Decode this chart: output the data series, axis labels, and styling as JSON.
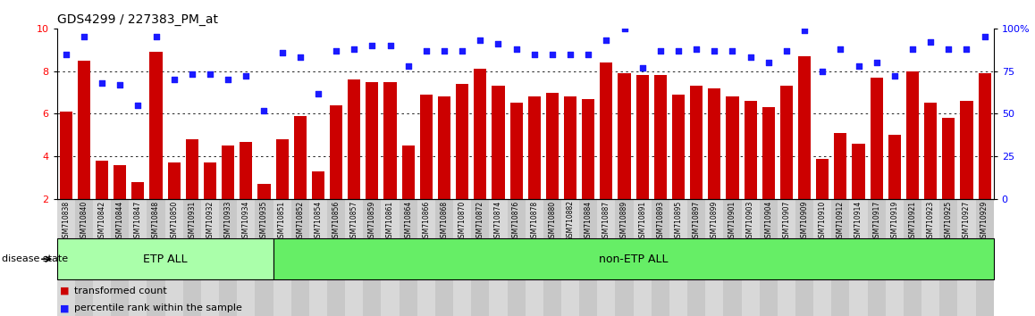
{
  "title": "GDS4299 / 227383_PM_at",
  "samples": [
    "GSM710838",
    "GSM710840",
    "GSM710842",
    "GSM710844",
    "GSM710847",
    "GSM710848",
    "GSM710850",
    "GSM710931",
    "GSM710932",
    "GSM710933",
    "GSM710934",
    "GSM710935",
    "GSM710851",
    "GSM710852",
    "GSM710854",
    "GSM710856",
    "GSM710857",
    "GSM710859",
    "GSM710861",
    "GSM710864",
    "GSM710866",
    "GSM710868",
    "GSM710870",
    "GSM710872",
    "GSM710874",
    "GSM710876",
    "GSM710878",
    "GSM710880",
    "GSM710882",
    "GSM710884",
    "GSM710887",
    "GSM710889",
    "GSM710891",
    "GSM710893",
    "GSM710895",
    "GSM710897",
    "GSM710899",
    "GSM710901",
    "GSM710903",
    "GSM710904",
    "GSM710907",
    "GSM710909",
    "GSM710910",
    "GSM710912",
    "GSM710914",
    "GSM710917",
    "GSM710919",
    "GSM710921",
    "GSM710923",
    "GSM710925",
    "GSM710927",
    "GSM710929"
  ],
  "bar_values": [
    6.1,
    8.5,
    3.8,
    3.6,
    2.8,
    8.9,
    3.7,
    4.8,
    3.7,
    4.5,
    4.7,
    2.7,
    4.8,
    5.9,
    3.3,
    6.4,
    7.6,
    7.5,
    7.5,
    4.5,
    6.9,
    6.8,
    7.4,
    8.1,
    7.3,
    6.5,
    6.8,
    7.0,
    6.8,
    6.7,
    8.4,
    7.9,
    7.8,
    7.8,
    6.9,
    7.3,
    7.2,
    6.8,
    6.6,
    6.3,
    7.3,
    8.7,
    3.9,
    5.1,
    4.6,
    7.7,
    5.0,
    8.0,
    6.5,
    5.8,
    6.6,
    7.9
  ],
  "dot_values": [
    85,
    95,
    68,
    67,
    55,
    95,
    70,
    73,
    73,
    70,
    72,
    52,
    86,
    83,
    62,
    87,
    88,
    90,
    90,
    78,
    87,
    87,
    87,
    93,
    91,
    88,
    85,
    85,
    85,
    85,
    93,
    100,
    77,
    87,
    87,
    88,
    87,
    87,
    83,
    80,
    87,
    99,
    75,
    88,
    78,
    80,
    72,
    88,
    92,
    88,
    88,
    95
  ],
  "etp_count": 12,
  "bar_color": "#cc0000",
  "dot_color": "#1a1aff",
  "etp_color": "#aaffaa",
  "non_etp_color": "#66ee66",
  "tick_bg_even": "#d8d8d8",
  "tick_bg_odd": "#c8c8c8",
  "ylim_left": [
    2,
    10
  ],
  "ylim_right": [
    0,
    100
  ],
  "yticks_left": [
    2,
    4,
    6,
    8,
    10
  ],
  "yticks_right": [
    0,
    25,
    50,
    75,
    100
  ],
  "ytick_right_labels": [
    "0",
    "25",
    "50",
    "75",
    "100%"
  ],
  "grid_values": [
    4,
    6,
    8
  ],
  "legend_items": [
    {
      "label": "transformed count",
      "color": "#cc0000",
      "marker": "s"
    },
    {
      "label": "percentile rank within the sample",
      "color": "#1a1aff",
      "marker": "s"
    }
  ],
  "disease_state_label": "disease state",
  "etp_label": "ETP ALL",
  "non_etp_label": "non-ETP ALL"
}
